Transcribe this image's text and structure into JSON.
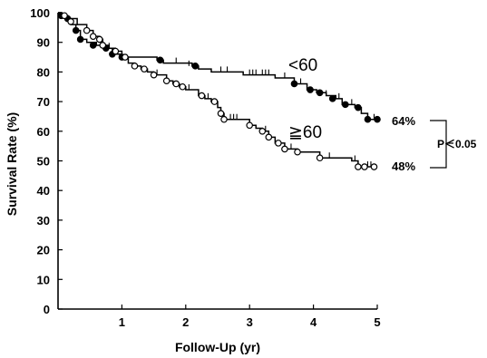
{
  "chart_data": {
    "type": "line",
    "title": "",
    "xlabel": "Follow-Up (yr)",
    "ylabel": "Survival Rate (%)",
    "xlim": [
      0,
      5
    ],
    "ylim": [
      0,
      100
    ],
    "x_ticks": [
      "1",
      "2",
      "3",
      "4",
      "5"
    ],
    "y_ticks": [
      "0",
      "10",
      "20",
      "30",
      "40",
      "50",
      "60",
      "70",
      "80",
      "90",
      "100"
    ],
    "grid": false,
    "series": [
      {
        "name": "<60",
        "marker": "filled-circle",
        "color": "#000000",
        "end_label": "64%",
        "steps": [
          [
            0,
            100
          ],
          [
            0.05,
            99
          ],
          [
            0.15,
            98
          ],
          [
            0.2,
            96
          ],
          [
            0.28,
            94
          ],
          [
            0.35,
            91
          ],
          [
            0.45,
            90
          ],
          [
            0.6,
            89
          ],
          [
            0.75,
            88
          ],
          [
            0.85,
            86
          ],
          [
            1.0,
            85
          ],
          [
            1.55,
            84
          ],
          [
            1.65,
            83
          ],
          [
            2.1,
            82
          ],
          [
            2.2,
            81
          ],
          [
            2.4,
            80
          ],
          [
            2.9,
            79
          ],
          [
            3.4,
            78
          ],
          [
            3.7,
            76
          ],
          [
            3.9,
            74
          ],
          [
            4.05,
            73
          ],
          [
            4.2,
            72
          ],
          [
            4.35,
            71
          ],
          [
            4.45,
            69
          ],
          [
            4.65,
            68
          ],
          [
            4.75,
            66
          ],
          [
            4.85,
            64
          ],
          [
            5.0,
            64
          ]
        ],
        "markers": [
          [
            0.05,
            99
          ],
          [
            0.15,
            98
          ],
          [
            0.28,
            94
          ],
          [
            0.35,
            91
          ],
          [
            0.55,
            89
          ],
          [
            0.75,
            88
          ],
          [
            0.85,
            86
          ],
          [
            1.0,
            85
          ],
          [
            1.6,
            84
          ],
          [
            2.15,
            82
          ],
          [
            3.7,
            76
          ],
          [
            3.95,
            74
          ],
          [
            4.1,
            73
          ],
          [
            4.3,
            71
          ],
          [
            4.5,
            69
          ],
          [
            4.7,
            68
          ],
          [
            4.85,
            64
          ],
          [
            5.0,
            64
          ]
        ],
        "censored": [
          [
            1.85,
            83
          ],
          [
            2.05,
            82
          ],
          [
            2.55,
            80
          ],
          [
            2.65,
            80
          ],
          [
            3.0,
            79
          ],
          [
            3.05,
            79
          ],
          [
            3.1,
            79
          ],
          [
            3.2,
            79
          ],
          [
            3.25,
            79
          ],
          [
            3.3,
            79
          ],
          [
            3.55,
            78
          ],
          [
            3.8,
            76
          ],
          [
            4.2,
            72
          ],
          [
            4.4,
            71
          ],
          [
            4.6,
            69
          ],
          [
            4.95,
            64
          ]
        ]
      },
      {
        "name": "≧60",
        "marker": "open-circle",
        "color": "#000000",
        "end_label": "48%",
        "steps": [
          [
            0,
            100
          ],
          [
            0.05,
            99
          ],
          [
            0.15,
            98
          ],
          [
            0.3,
            96
          ],
          [
            0.45,
            94
          ],
          [
            0.55,
            92
          ],
          [
            0.65,
            91
          ],
          [
            0.7,
            89
          ],
          [
            0.8,
            88
          ],
          [
            0.9,
            87
          ],
          [
            1.0,
            85
          ],
          [
            1.1,
            83
          ],
          [
            1.2,
            82
          ],
          [
            1.3,
            81
          ],
          [
            1.4,
            80
          ],
          [
            1.5,
            79
          ],
          [
            1.7,
            77
          ],
          [
            1.8,
            76
          ],
          [
            1.9,
            75
          ],
          [
            2.0,
            74
          ],
          [
            2.2,
            72
          ],
          [
            2.3,
            71
          ],
          [
            2.4,
            70
          ],
          [
            2.5,
            68
          ],
          [
            2.55,
            66
          ],
          [
            2.6,
            64
          ],
          [
            3.0,
            62
          ],
          [
            3.1,
            61
          ],
          [
            3.2,
            60
          ],
          [
            3.3,
            58
          ],
          [
            3.4,
            56
          ],
          [
            3.55,
            54
          ],
          [
            3.75,
            53
          ],
          [
            4.1,
            51
          ],
          [
            4.6,
            50
          ],
          [
            4.7,
            48
          ],
          [
            5.0,
            48
          ]
        ],
        "markers": [
          [
            0.1,
            99
          ],
          [
            0.2,
            97
          ],
          [
            0.45,
            94
          ],
          [
            0.55,
            92
          ],
          [
            0.65,
            91
          ],
          [
            0.7,
            89
          ],
          [
            0.9,
            87
          ],
          [
            1.05,
            85
          ],
          [
            1.2,
            82
          ],
          [
            1.35,
            81
          ],
          [
            1.5,
            79
          ],
          [
            1.7,
            77
          ],
          [
            1.85,
            76
          ],
          [
            1.95,
            75
          ],
          [
            2.25,
            72
          ],
          [
            2.45,
            70
          ],
          [
            2.55,
            66
          ],
          [
            2.6,
            64
          ],
          [
            3.0,
            62
          ],
          [
            3.2,
            60
          ],
          [
            3.3,
            58
          ],
          [
            3.45,
            56
          ],
          [
            3.55,
            54
          ],
          [
            3.75,
            53
          ],
          [
            4.1,
            51
          ],
          [
            4.7,
            48
          ],
          [
            4.8,
            48
          ],
          [
            4.95,
            48
          ]
        ],
        "censored": [
          [
            0.8,
            88
          ],
          [
            1.55,
            79
          ],
          [
            2.05,
            74
          ],
          [
            2.35,
            71
          ],
          [
            2.7,
            64
          ],
          [
            2.75,
            64
          ],
          [
            2.8,
            64
          ],
          [
            3.25,
            60
          ],
          [
            3.65,
            54
          ],
          [
            4.25,
            51
          ],
          [
            4.65,
            50
          ],
          [
            4.85,
            48
          ],
          [
            4.9,
            48
          ]
        ]
      }
    ],
    "annotations": {
      "stat_test": "P＜0.05"
    }
  }
}
